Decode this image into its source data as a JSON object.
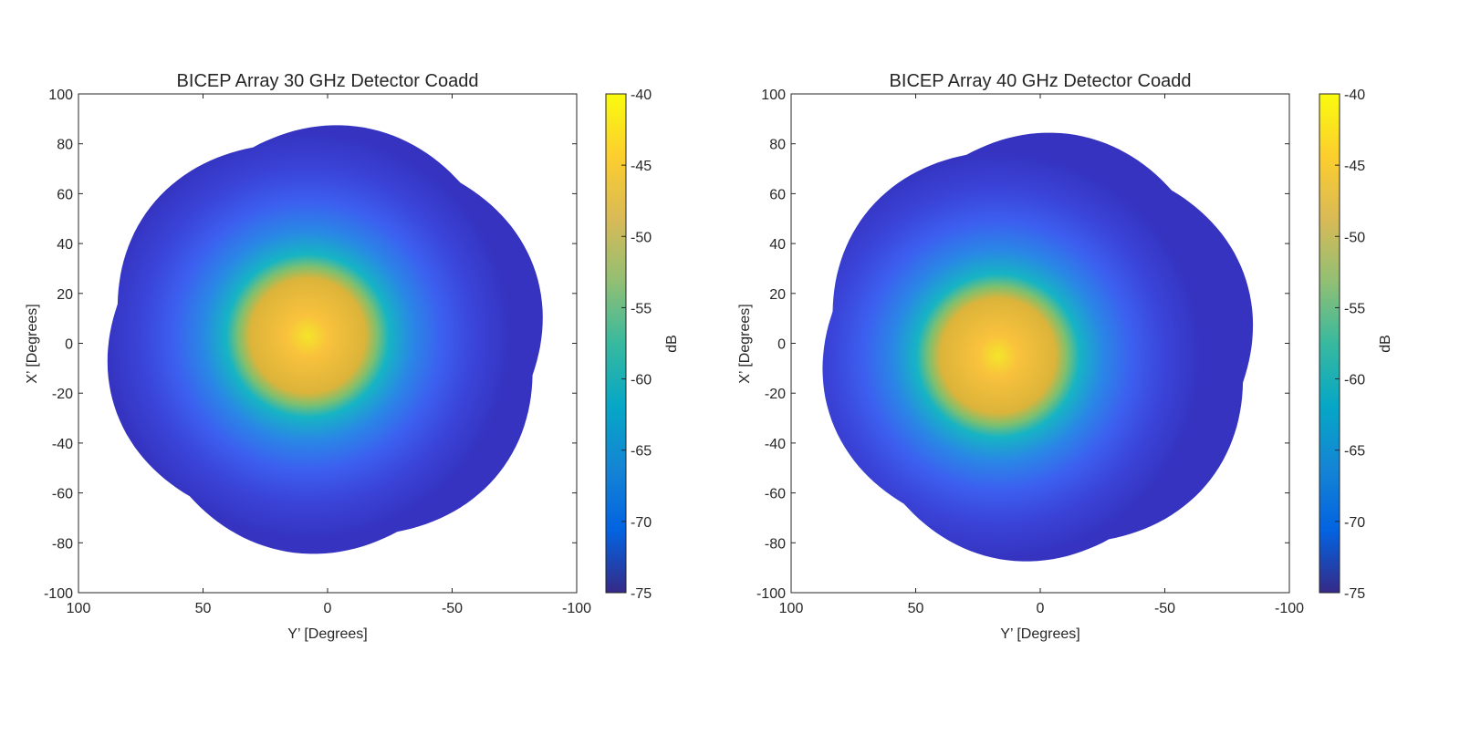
{
  "chart_data": [
    {
      "type": "heatmap",
      "title": "BICEP Array 30 GHz Detector Coadd",
      "xlabel": "Y’ [Degrees]",
      "ylabel": "X’ [Degrees]",
      "xlim": [
        100,
        -100
      ],
      "ylim": [
        -100,
        100
      ],
      "x_reversed": true,
      "xticks": [
        "100",
        "50",
        "0",
        "-50",
        "-100"
      ],
      "xtick_values": [
        100,
        50,
        0,
        -50,
        -100
      ],
      "yticks": [
        "100",
        "80",
        "60",
        "40",
        "20",
        "0",
        "-20",
        "-40",
        "-60",
        "-80",
        "-100"
      ],
      "ytick_values": [
        100,
        80,
        60,
        40,
        20,
        0,
        -20,
        -40,
        -60,
        -80,
        -100
      ],
      "colorbar": {
        "label": "dB",
        "clim": [
          -75,
          -40
        ],
        "ticks": [
          "-40",
          "-45",
          "-50",
          "-55",
          "-60",
          "-65",
          "-70",
          "-75"
        ],
        "tick_values": [
          -40,
          -45,
          -50,
          -55,
          -60,
          -65,
          -70,
          -75
        ],
        "colormap": "parula"
      },
      "grid": false,
      "peak_db": -41,
      "floor_db": -73,
      "peak_center": [
        8,
        3
      ],
      "main_lobe_extent": {
        "y_range": [
          35,
          -28
        ],
        "x_range": [
          35,
          -30
        ]
      },
      "coverage_extent": {
        "y_range": [
          90,
          -88
        ],
        "x_range": [
          88,
          -85
        ]
      }
    },
    {
      "type": "heatmap",
      "title": "BICEP Array 40 GHz Detector Coadd",
      "xlabel": "Y’ [Degrees]",
      "ylabel": "X’ [Degrees]",
      "xlim": [
        100,
        -100
      ],
      "ylim": [
        -100,
        100
      ],
      "x_reversed": true,
      "xticks": [
        "100",
        "50",
        "0",
        "-50",
        "-100"
      ],
      "xtick_values": [
        100,
        50,
        0,
        -50,
        -100
      ],
      "yticks": [
        "100",
        "80",
        "60",
        "40",
        "20",
        "0",
        "-20",
        "-40",
        "-60",
        "-80",
        "-100"
      ],
      "ytick_values": [
        100,
        80,
        60,
        40,
        20,
        0,
        -20,
        -40,
        -60,
        -80,
        -100
      ],
      "colorbar": {
        "label": "dB",
        "clim": [
          -75,
          -40
        ],
        "ticks": [
          "-40",
          "-45",
          "-50",
          "-55",
          "-60",
          "-65",
          "-70",
          "-75"
        ],
        "tick_values": [
          -40,
          -45,
          -50,
          -55,
          -60,
          -65,
          -70,
          -75
        ],
        "colormap": "parula"
      },
      "grid": false,
      "peak_db": -42,
      "floor_db": -74,
      "peak_center": [
        17,
        -5
      ],
      "main_lobe_extent": {
        "y_range": [
          35,
          -28
        ],
        "x_range": [
          28,
          -40
        ]
      },
      "coverage_extent": {
        "y_range": [
          89,
          -87
        ],
        "x_range": [
          85,
          -88
        ]
      }
    }
  ]
}
